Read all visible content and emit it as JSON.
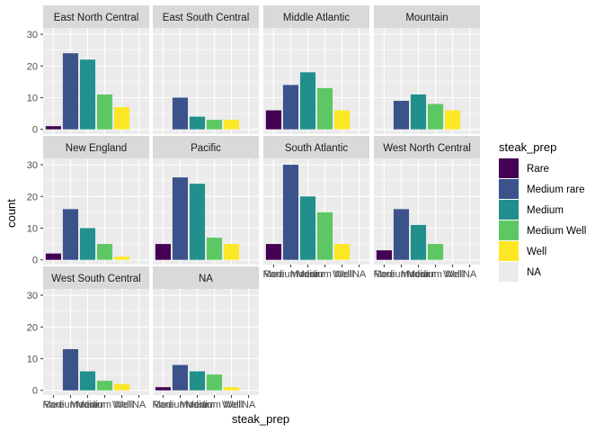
{
  "chart_data": {
    "type": "bar",
    "facet_by": "region",
    "xlabel": "steak_prep",
    "ylabel": "count",
    "ylim": [
      0,
      32
    ],
    "y_ticks": [
      0,
      10,
      20,
      30
    ],
    "categories": [
      "Rare",
      "Medium rare",
      "Medium",
      "Medium Well",
      "Well",
      "NA"
    ],
    "colors": [
      "#440154",
      "#3b528b",
      "#21908c",
      "#5dc863",
      "#fde725",
      "#ebebeb"
    ],
    "legend": {
      "title": "steak_prep",
      "position": "right",
      "entries": [
        "Rare",
        "Medium rare",
        "Medium",
        "Medium Well",
        "Well",
        "NA"
      ]
    },
    "panels": [
      {
        "name": "East North Central",
        "values": [
          1,
          24,
          22,
          11,
          7,
          0
        ]
      },
      {
        "name": "East South Central",
        "values": [
          0,
          10,
          4,
          3,
          3,
          0
        ]
      },
      {
        "name": "Middle Atlantic",
        "values": [
          6,
          14,
          18,
          13,
          6,
          0
        ]
      },
      {
        "name": "Mountain",
        "values": [
          0,
          9,
          11,
          8,
          6,
          0
        ]
      },
      {
        "name": "New England",
        "values": [
          2,
          16,
          10,
          5,
          1,
          0
        ]
      },
      {
        "name": "Pacific",
        "values": [
          5,
          26,
          24,
          7,
          5,
          0
        ]
      },
      {
        "name": "South Atlantic",
        "values": [
          5,
          30,
          20,
          15,
          5,
          0
        ]
      },
      {
        "name": "West North Central",
        "values": [
          3,
          16,
          11,
          5,
          0,
          0
        ]
      },
      {
        "name": "West South Central",
        "values": [
          0,
          13,
          6,
          3,
          2,
          0
        ]
      },
      {
        "name": "NA",
        "values": [
          1,
          8,
          6,
          5,
          1,
          0
        ]
      }
    ],
    "x_axis_shown_on": [
      "South Atlantic",
      "West North Central",
      "West South Central",
      "NA"
    ],
    "grid": true
  }
}
